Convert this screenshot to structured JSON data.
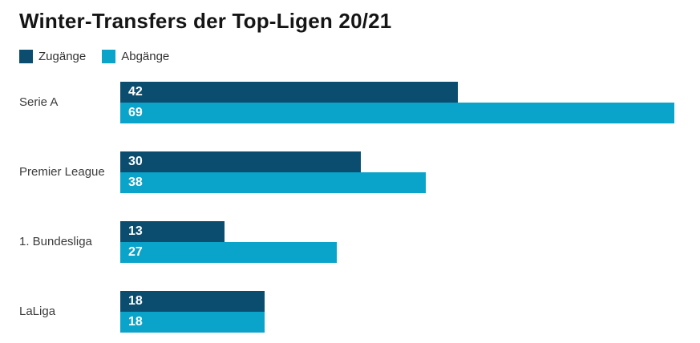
{
  "chart_data": {
    "type": "bar",
    "orientation": "horizontal",
    "title": "Winter-Transfers der Top-Ligen 20/21",
    "categories": [
      "Serie A",
      "Premier League",
      "1. Bundesliga",
      "LaLiga"
    ],
    "series": [
      {
        "name": "Zugänge",
        "color": "#0a4d6f",
        "values": [
          42,
          30,
          13,
          18
        ]
      },
      {
        "name": "Abgänge",
        "color": "#0aa3c9",
        "values": [
          69,
          38,
          27,
          18
        ]
      }
    ],
    "xlim": [
      0,
      69
    ],
    "xlabel": "",
    "ylabel": "",
    "grid": false,
    "legend_position": "top-left",
    "value_labels": "inside-start"
  },
  "colors": {
    "background": "#ffffff",
    "title_text": "#151515",
    "category_label_text": "#3b3b3b",
    "value_label_text": "#ffffff",
    "series_zugaenge": "#0a4d6f",
    "series_abgaenge": "#0aa3c9"
  }
}
